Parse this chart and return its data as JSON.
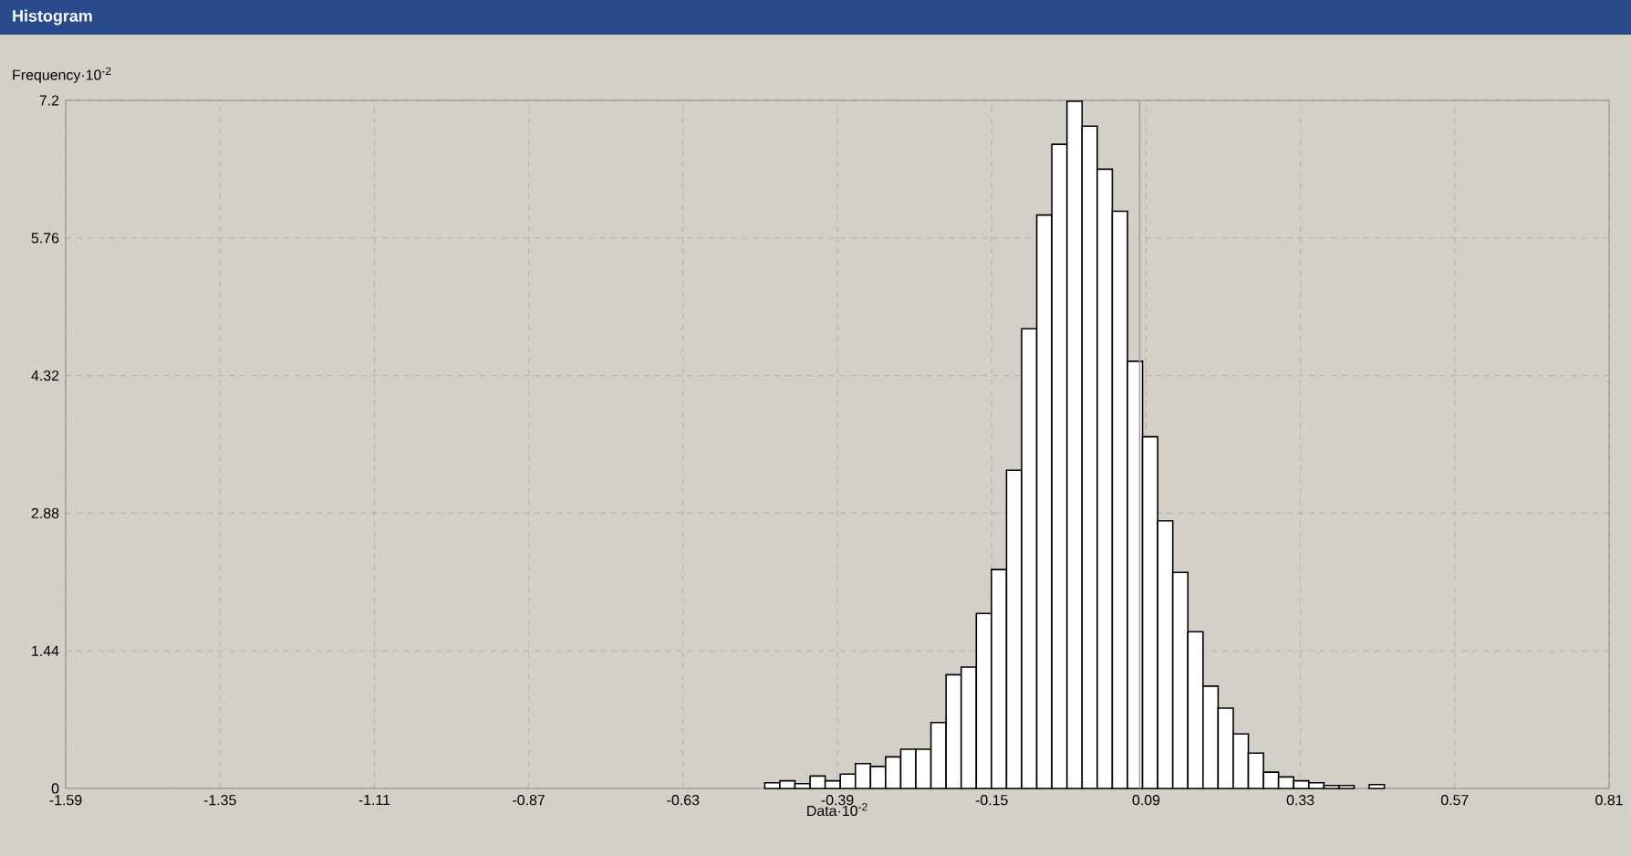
{
  "chart_data": {
    "type": "histogram",
    "title": "Histogram",
    "xlabel": "Data·10$^{-2}$",
    "ylabel": "Frequency·10$^{-2}$",
    "bins": [
      -0.55,
      -0.5265,
      -0.503,
      -0.4795,
      -0.456,
      -0.4325,
      -0.409,
      -0.3855,
      -0.362,
      -0.3385,
      -0.315,
      -0.2915,
      -0.268,
      -0.2445,
      -0.221,
      -0.1975,
      -0.174,
      -0.1505,
      -0.127,
      -0.1035,
      -0.08,
      -0.0565,
      -0.033,
      -0.0095,
      0.014,
      0.0375,
      0.061,
      0.0845,
      0.108,
      0.1315,
      0.155,
      0.1785,
      0.202,
      0.2255,
      0.249,
      0.2725,
      0.296,
      0.3195,
      0.343,
      0.3665,
      0.39,
      0.4135,
      0.437,
      0.4605
    ],
    "values": [
      null,
      null,
      0.06,
      0.08,
      0.05,
      0.13,
      0.08,
      0.15,
      0.26,
      0.23,
      0.33,
      0.41,
      0.41,
      0.69,
      1.19,
      1.27,
      1.83,
      2.29,
      3.33,
      4.81,
      6.0,
      6.74,
      7.19,
      6.93,
      6.48,
      6.04,
      4.47,
      3.68,
      2.8,
      2.26,
      1.64,
      1.07,
      0.84,
      0.57,
      0.37,
      0.17,
      0.12,
      0.08,
      0.06,
      0.03,
      0.03,
      null,
      0.04
    ],
    "color": "#ffffff",
    "xlim": [
      -1.59,
      0.81
    ],
    "xticks": [
      -1.59,
      -1.35,
      -1.11,
      -0.87,
      -0.63,
      -0.39,
      -0.15,
      0.09,
      0.33,
      0.57,
      0.81
    ],
    "ylim": [
      0,
      7.2
    ],
    "yticks": [
      0,
      1.44,
      2.88,
      4.32,
      5.76,
      7.2
    ],
    "grid": true,
    "ref_lines": [
      {
        "axis": "x",
        "value": 0.08,
        "color": "#a0a0a0",
        "line_style": "solid"
      }
    ]
  }
}
